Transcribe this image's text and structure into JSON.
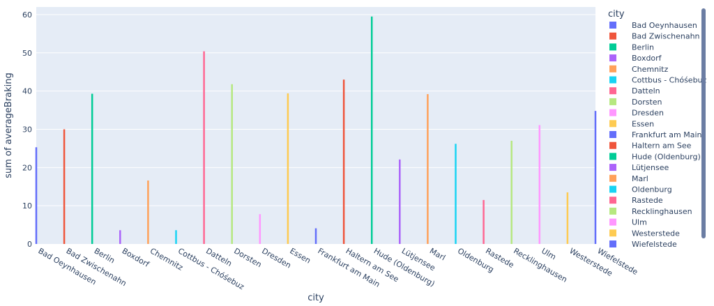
{
  "chart_data": {
    "type": "bar",
    "title": "",
    "xlabel": "city",
    "ylabel": "sum of averageBraking",
    "ylim": [
      0,
      62
    ],
    "yticks": [
      0,
      10,
      20,
      30,
      40,
      50,
      60
    ],
    "grid": true,
    "legend_title": "city",
    "legend_position": "right",
    "plot_bg": "#e5ecf6",
    "series": [
      {
        "name": "Bad Oeynhausen",
        "value": 25.3,
        "color": "#636efa"
      },
      {
        "name": "Bad Zwischenahn",
        "value": 30.0,
        "color": "#EF553B"
      },
      {
        "name": "Berlin",
        "value": 39.3,
        "color": "#00cc96"
      },
      {
        "name": "Boxdorf",
        "value": 3.6,
        "color": "#ab63fa"
      },
      {
        "name": "Chemnitz",
        "value": 16.6,
        "color": "#FFA15A"
      },
      {
        "name": "Cottbus - Chóśebuz",
        "value": 3.6,
        "color": "#19d3f3"
      },
      {
        "name": "Datteln",
        "value": 50.4,
        "color": "#FF6692"
      },
      {
        "name": "Dorsten",
        "value": 41.8,
        "color": "#B6E880"
      },
      {
        "name": "Dresden",
        "value": 7.8,
        "color": "#FF97FF"
      },
      {
        "name": "Essen",
        "value": 39.4,
        "color": "#FECB52"
      },
      {
        "name": "Frankfurt am Main",
        "value": 4.1,
        "color": "#636efa"
      },
      {
        "name": "Haltern am See",
        "value": 43.0,
        "color": "#EF553B"
      },
      {
        "name": "Hude (Oldenburg)",
        "value": 59.5,
        "color": "#00cc96"
      },
      {
        "name": "Lütjensee",
        "value": 22.1,
        "color": "#ab63fa"
      },
      {
        "name": "Marl",
        "value": 39.2,
        "color": "#FFA15A"
      },
      {
        "name": "Oldenburg",
        "value": 26.2,
        "color": "#19d3f3"
      },
      {
        "name": "Rastede",
        "value": 11.5,
        "color": "#FF6692"
      },
      {
        "name": "Recklinghausen",
        "value": 27.0,
        "color": "#B6E880"
      },
      {
        "name": "Ulm",
        "value": 31.1,
        "color": "#FF97FF"
      },
      {
        "name": "Westerstede",
        "value": 13.5,
        "color": "#FECB52"
      },
      {
        "name": "Wiefelstede",
        "value": 34.8,
        "color": "#636efa"
      }
    ]
  }
}
